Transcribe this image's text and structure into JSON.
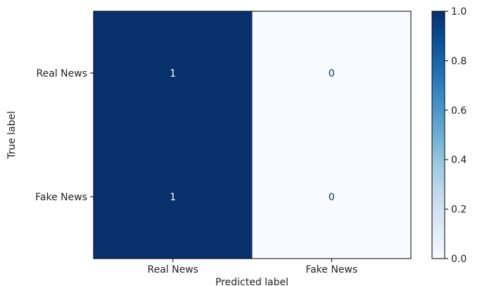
{
  "chart_data": {
    "type": "heatmap",
    "x_categories": [
      "Real News",
      "Fake News"
    ],
    "y_categories": [
      "Real News",
      "Fake News"
    ],
    "values": [
      [
        1,
        0
      ],
      [
        1,
        0
      ]
    ],
    "cell_labels": [
      [
        "1",
        "0"
      ],
      [
        "1",
        "0"
      ]
    ],
    "xlabel": "Predicted label",
    "ylabel": "True label",
    "colormap": "Blues",
    "colorbar": {
      "range": [
        0.0,
        1.0
      ],
      "ticks": [
        "0.0",
        "0.2",
        "0.4",
        "0.6",
        "0.8",
        "1.0"
      ],
      "tick_values": [
        0.0,
        0.2,
        0.4,
        0.6,
        0.8,
        1.0
      ]
    },
    "colors": {
      "high": "#08306b",
      "low": "#f7fbff",
      "text_on_dark": "#ffffff",
      "text_on_light": "#08306b"
    }
  }
}
